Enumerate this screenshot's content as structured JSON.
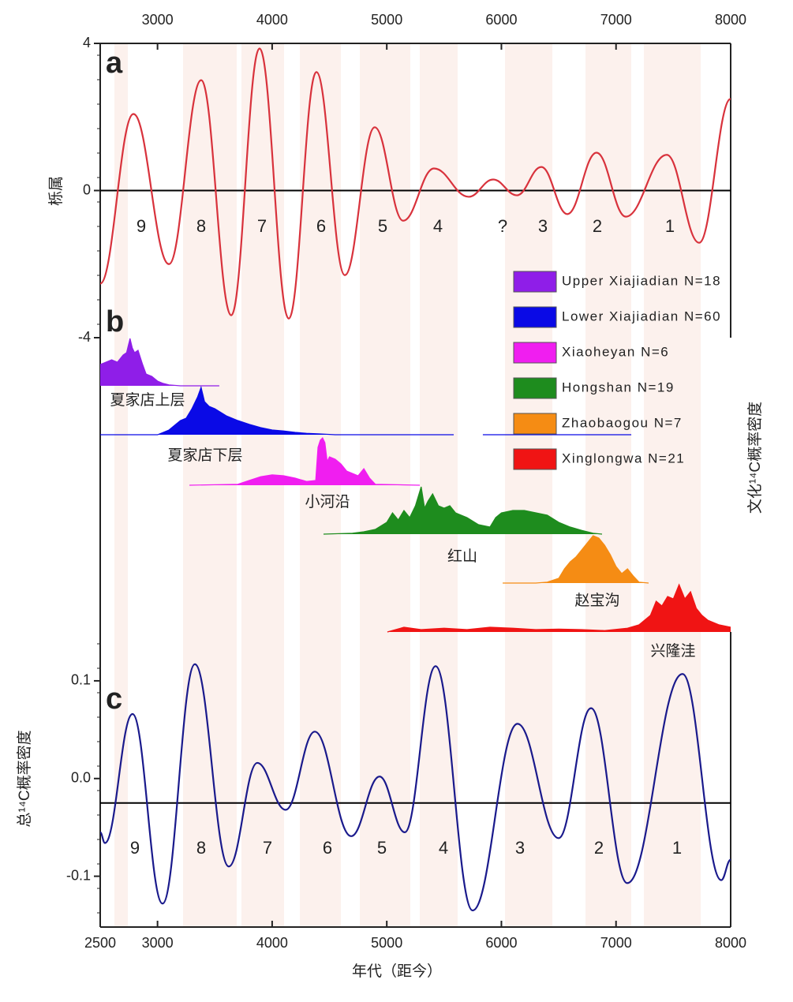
{
  "chart_data": [
    {
      "type": "line",
      "panel_label": "a",
      "ylabel": "栎属",
      "xlim": [
        2500,
        8000
      ],
      "xticks": [
        3000,
        4000,
        5000,
        6000,
        7000,
        8000
      ],
      "ylim": [
        -4,
        4
      ],
      "yticks": [
        -4,
        0,
        4
      ],
      "hline": 0,
      "series": [
        {
          "color": "#d8323c",
          "x": [
            2500,
            2790,
            3100,
            3381,
            3643,
            3890,
            4145,
            4386,
            4634,
            4895,
            5143,
            5412,
            5715,
            5928,
            6135,
            6348,
            6575,
            6830,
            7085,
            7443,
            7725,
            8000
          ],
          "values": [
            -2.53,
            2.08,
            -2.0,
            3.0,
            -3.39,
            3.86,
            -3.48,
            3.22,
            -2.3,
            1.72,
            -0.82,
            0.6,
            -0.17,
            0.3,
            -0.13,
            0.64,
            -0.64,
            1.03,
            -0.71,
            0.97,
            -1.42,
            2.49
          ]
        }
      ],
      "cycle_labels": [
        "9",
        "8",
        "7",
        "6",
        "5",
        "4",
        "?",
        "3",
        "2",
        "1"
      ]
    },
    {
      "type": "area",
      "panel_label": "b",
      "ylabel": "文化¹⁴C概率密度",
      "xlim": [
        2500,
        8000
      ],
      "series": [
        {
          "name": "Upper Xiajiadian N=18",
          "label": "夏家店上层",
          "color": "#8f1ee8",
          "x": [
            2500,
            2550,
            2600,
            2650,
            2700,
            2730,
            2760,
            2780,
            2800,
            2830,
            2870,
            2900,
            2950,
            3000,
            3050,
            3100,
            3200,
            3539
          ],
          "values": [
            0.45,
            0.5,
            0.55,
            0.5,
            0.65,
            0.7,
            1.0,
            0.8,
            0.7,
            0.75,
            0.45,
            0.25,
            0.2,
            0.1,
            0.05,
            0.02,
            0,
            0
          ]
        },
        {
          "name": "Lower Xiajiadian N=60",
          "label": "夏家店下层",
          "color": "#0a0ae6",
          "x": [
            2500,
            3000,
            3050,
            3100,
            3150,
            3200,
            3250,
            3300,
            3350,
            3380,
            3410,
            3450,
            3500,
            3600,
            3700,
            3800,
            3900,
            4000,
            4100,
            4200,
            4300,
            4400,
            4550,
            5584,
            5700,
            5838,
            7133
          ],
          "values": [
            0,
            0,
            0.05,
            0.1,
            0.2,
            0.3,
            0.35,
            0.55,
            0.8,
            1.0,
            0.7,
            0.6,
            0.55,
            0.4,
            0.3,
            0.22,
            0.15,
            0.1,
            0.08,
            0.05,
            0.03,
            0.02,
            0,
            0,
            null,
            0,
            0
          ]
        },
        {
          "name": "Xiaoheyan N=6",
          "label": "小河沿",
          "color": "#f01ef0",
          "x": [
            3278,
            3700,
            3800,
            3900,
            4000,
            4100,
            4200,
            4300,
            4380,
            4400,
            4420,
            4440,
            4460,
            4480,
            4500,
            4550,
            4600,
            4650,
            4700,
            4750,
            4800,
            4850,
            4900,
            5288
          ],
          "values": [
            0,
            0.02,
            0.1,
            0.18,
            0.22,
            0.2,
            0.15,
            0.08,
            0.1,
            0.8,
            0.95,
            1.0,
            0.9,
            0.5,
            0.6,
            0.55,
            0.45,
            0.3,
            0.25,
            0.2,
            0.35,
            0.15,
            0.02,
            0
          ]
        },
        {
          "name": "Hongshan N=19",
          "label": "红山",
          "color": "#1e8c1e",
          "x": [
            4448,
            4700,
            4800,
            4900,
            5000,
            5050,
            5100,
            5150,
            5200,
            5250,
            5300,
            5330,
            5360,
            5400,
            5450,
            5500,
            5550,
            5600,
            5700,
            5800,
            5900,
            5950,
            6000,
            6100,
            6200,
            6300,
            6400,
            6500,
            6600,
            6700,
            6800,
            6878
          ],
          "values": [
            0,
            0.02,
            0.05,
            0.1,
            0.25,
            0.45,
            0.3,
            0.5,
            0.35,
            0.6,
            1.0,
            0.55,
            0.7,
            0.85,
            0.6,
            0.55,
            0.6,
            0.45,
            0.35,
            0.2,
            0.15,
            0.35,
            0.45,
            0.5,
            0.5,
            0.45,
            0.4,
            0.25,
            0.15,
            0.08,
            0.02,
            0
          ]
        },
        {
          "name": "Zhaobaogou N=7",
          "label": "赵宝沟",
          "color": "#f58c14",
          "x": [
            6011,
            6300,
            6400,
            6500,
            6550,
            6600,
            6650,
            6700,
            6750,
            6800,
            6850,
            6900,
            6950,
            7000,
            7050,
            7100,
            7150,
            7200,
            7284
          ],
          "values": [
            0,
            0,
            0.02,
            0.1,
            0.3,
            0.45,
            0.55,
            0.7,
            0.85,
            1.0,
            0.95,
            0.8,
            0.6,
            0.35,
            0.2,
            0.3,
            0.15,
            0.02,
            0
          ]
        },
        {
          "name": "Xinglongwa N=21",
          "label": "兴隆洼",
          "color": "#f01414",
          "x": [
            5005,
            5150,
            5300,
            5500,
            5700,
            5900,
            6100,
            6300,
            6500,
            6700,
            6900,
            7100,
            7200,
            7300,
            7350,
            7400,
            7450,
            7500,
            7550,
            7600,
            7650,
            7700,
            7750,
            7800,
            7850,
            7900,
            8000
          ],
          "values": [
            0,
            0.1,
            0.05,
            0.08,
            0.05,
            0.1,
            0.08,
            0.05,
            0.06,
            0.05,
            0.03,
            0.08,
            0.15,
            0.35,
            0.65,
            0.55,
            0.75,
            0.7,
            1.0,
            0.7,
            0.85,
            0.5,
            0.35,
            0.25,
            0.2,
            0.15,
            0.1
          ]
        }
      ]
    },
    {
      "type": "line",
      "panel_label": "c",
      "ylabel": "总¹⁴C概率密度",
      "xlabel": "年代（距今）",
      "xlim": [
        2500,
        8000
      ],
      "xticks": [
        2500,
        3000,
        4000,
        5000,
        6000,
        7000,
        8000
      ],
      "ylim": [
        -0.152,
        0.15
      ],
      "yticks": [
        -0.1,
        {
          "value": 0,
          "label": "0.0"
        },
        0.1
      ],
      "hline": -0.025,
      "series": [
        {
          "color": "#1a1a8c",
          "x": [
            2500,
            2541,
            2782,
            3044,
            3326,
            3622,
            3870,
            4118,
            4372,
            4689,
            4937,
            5157,
            5426,
            5749,
            6141,
            6499,
            6782,
            7098,
            7580,
            7918,
            8000
          ],
          "values": [
            -0.055,
            -0.066,
            0.066,
            -0.128,
            0.117,
            -0.09,
            0.016,
            -0.032,
            0.048,
            -0.059,
            0.002,
            -0.055,
            0.115,
            -0.135,
            0.056,
            -0.061,
            0.072,
            -0.107,
            0.107,
            -0.104,
            -0.083
          ]
        }
      ],
      "cycle_labels": [
        "9",
        "8",
        "7",
        "6",
        "5",
        "4",
        "3",
        "2",
        "1"
      ]
    }
  ]
}
